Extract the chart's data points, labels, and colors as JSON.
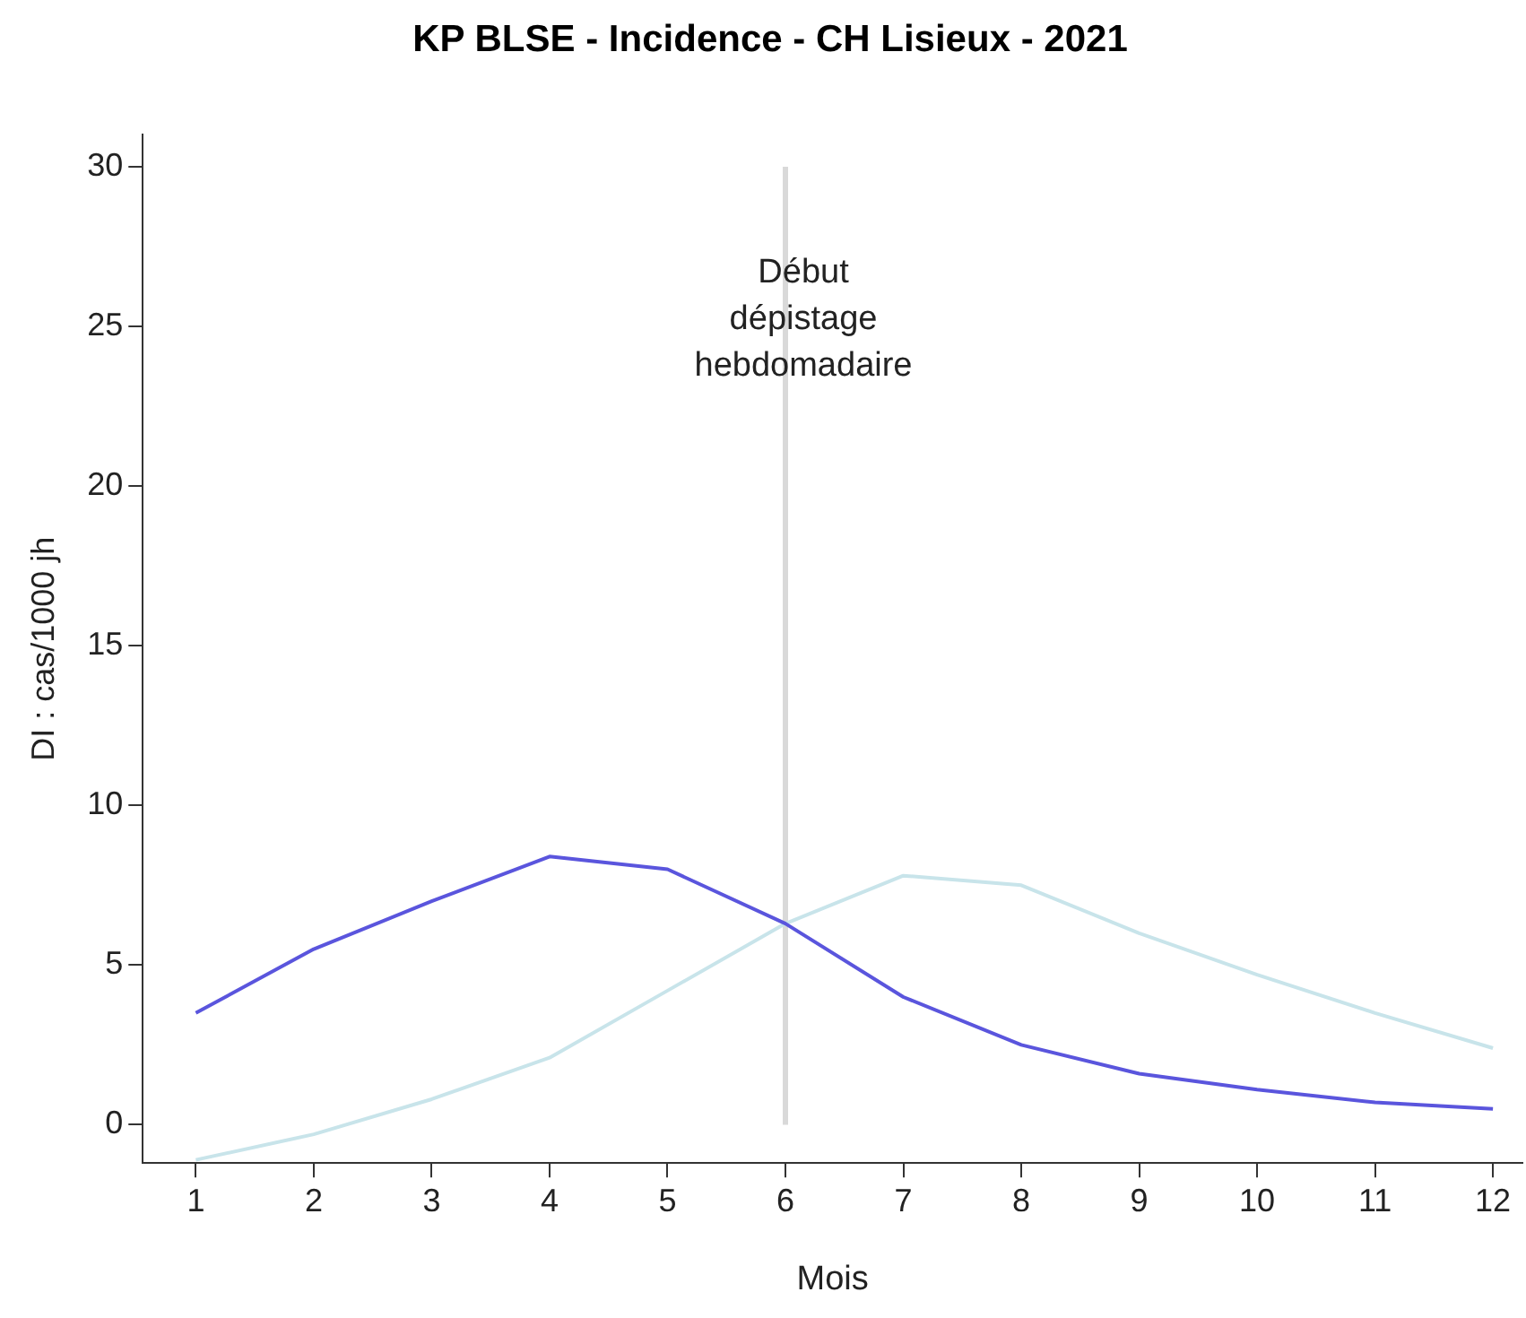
{
  "chart_data": {
    "type": "line",
    "title": "KP BLSE - Incidence - CH Lisieux - 2021",
    "xlabel": "Mois",
    "ylabel": "DI : cas/1000 jh",
    "x": [
      1,
      2,
      3,
      4,
      5,
      6,
      7,
      8,
      9,
      10,
      11,
      12
    ],
    "series": [
      {
        "color": "#5a55dd",
        "values": [
          3.5,
          5.5,
          7.0,
          8.4,
          8.0,
          6.3,
          4.0,
          2.5,
          1.6,
          1.1,
          0.7,
          0.5
        ]
      },
      {
        "color": "#c8e4ea",
        "values": [
          -1.1,
          -0.3,
          0.8,
          2.1,
          4.2,
          6.3,
          7.8,
          7.5,
          6.0,
          4.7,
          3.5,
          2.4
        ]
      }
    ],
    "xlim": [
      0.55,
      12.25
    ],
    "xticks": [
      1,
      2,
      3,
      4,
      5,
      6,
      7,
      8,
      9,
      10,
      11,
      12
    ],
    "ylim": [
      -1.2,
      31
    ],
    "yticks": [
      0,
      5,
      10,
      15,
      20,
      25,
      30
    ],
    "ref_lines": [
      {
        "axis": "x",
        "value": 6,
        "label": "Début\ndépistage\nhebdomadaire",
        "color": "#d9d9d9"
      }
    ],
    "grid": false,
    "legend": false,
    "marker": "none",
    "line_style": "solid"
  }
}
